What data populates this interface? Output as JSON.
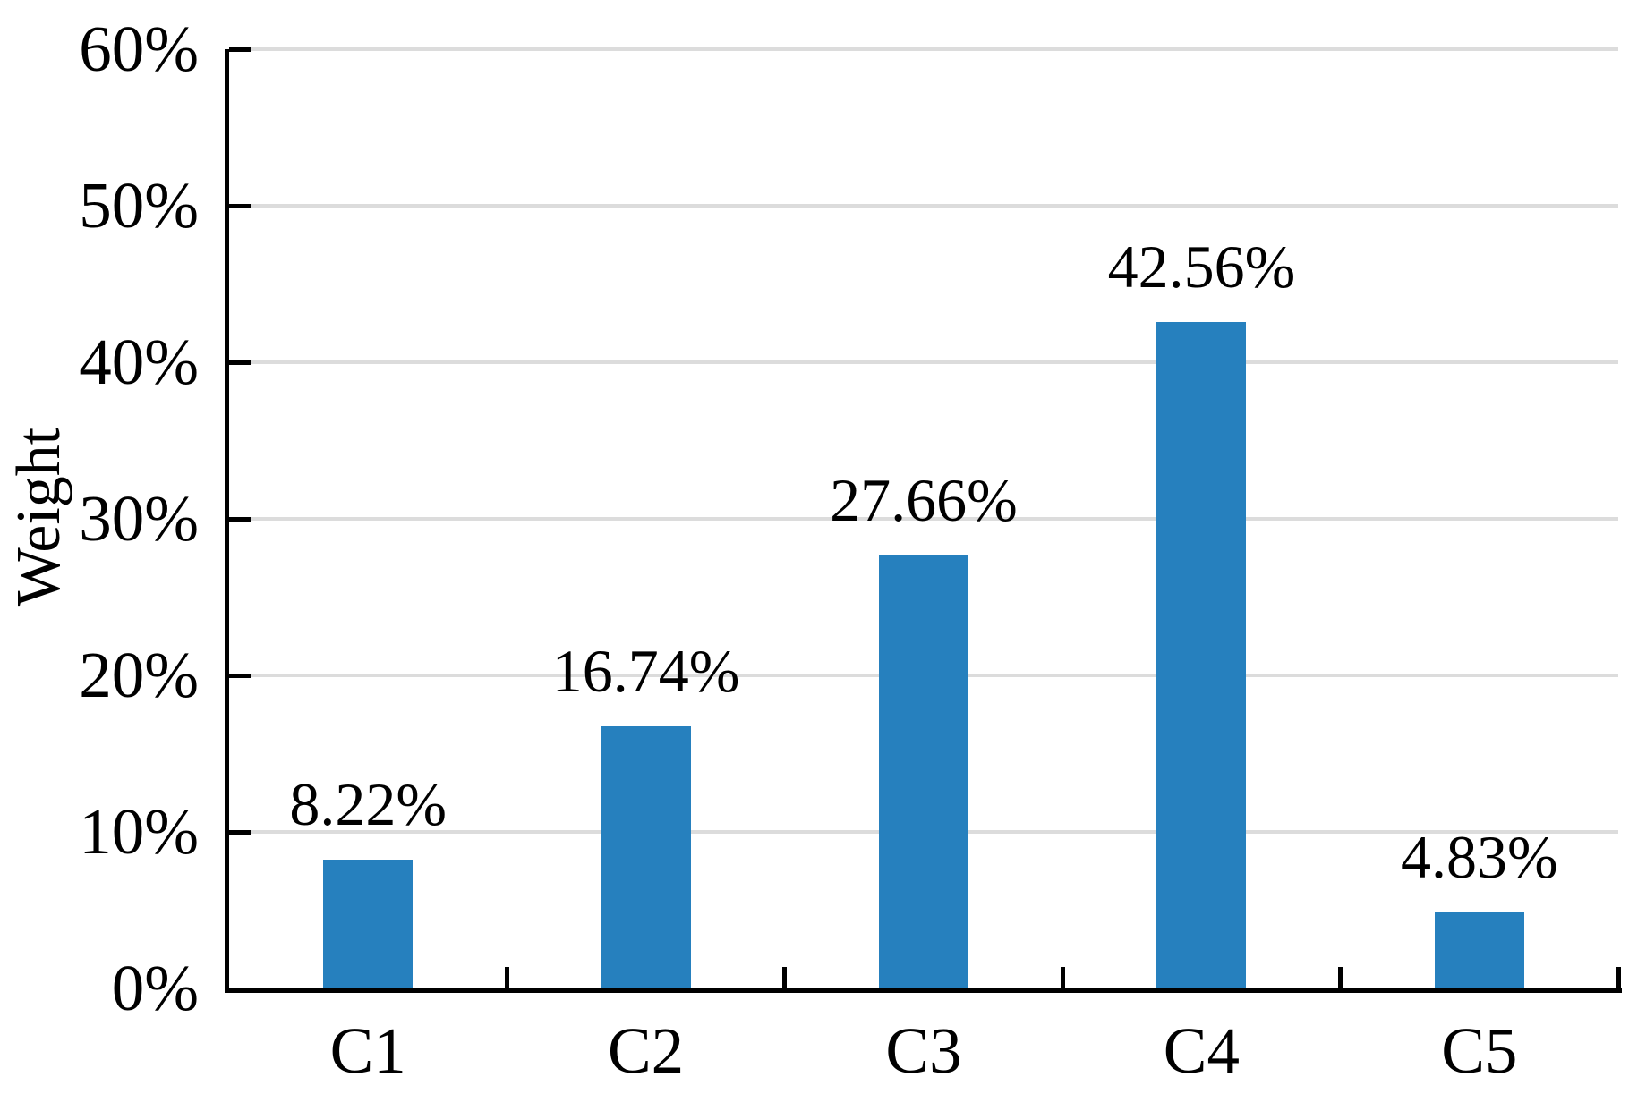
{
  "chart_data": {
    "type": "bar",
    "categories": [
      "C1",
      "C2",
      "C3",
      "C4",
      "C5"
    ],
    "values": [
      8.22,
      16.74,
      27.66,
      42.56,
      4.83
    ],
    "value_labels": [
      "8.22%",
      "16.74%",
      "27.66%",
      "42.56%",
      "4.83%"
    ],
    "title": "",
    "xlabel": "",
    "ylabel": "Weight",
    "ylim": [
      0,
      60
    ],
    "ytick_step": 10,
    "ytick_labels": [
      "0%",
      "10%",
      "20%",
      "30%",
      "40%",
      "50%",
      "60%"
    ],
    "grid": "horizontal",
    "legend": "none",
    "colors": {
      "bar_fill": "#2680BE",
      "grid_line": "#DCDCDC",
      "axis_line": "#000000",
      "text": "#000000",
      "background": "#ffffff"
    }
  }
}
